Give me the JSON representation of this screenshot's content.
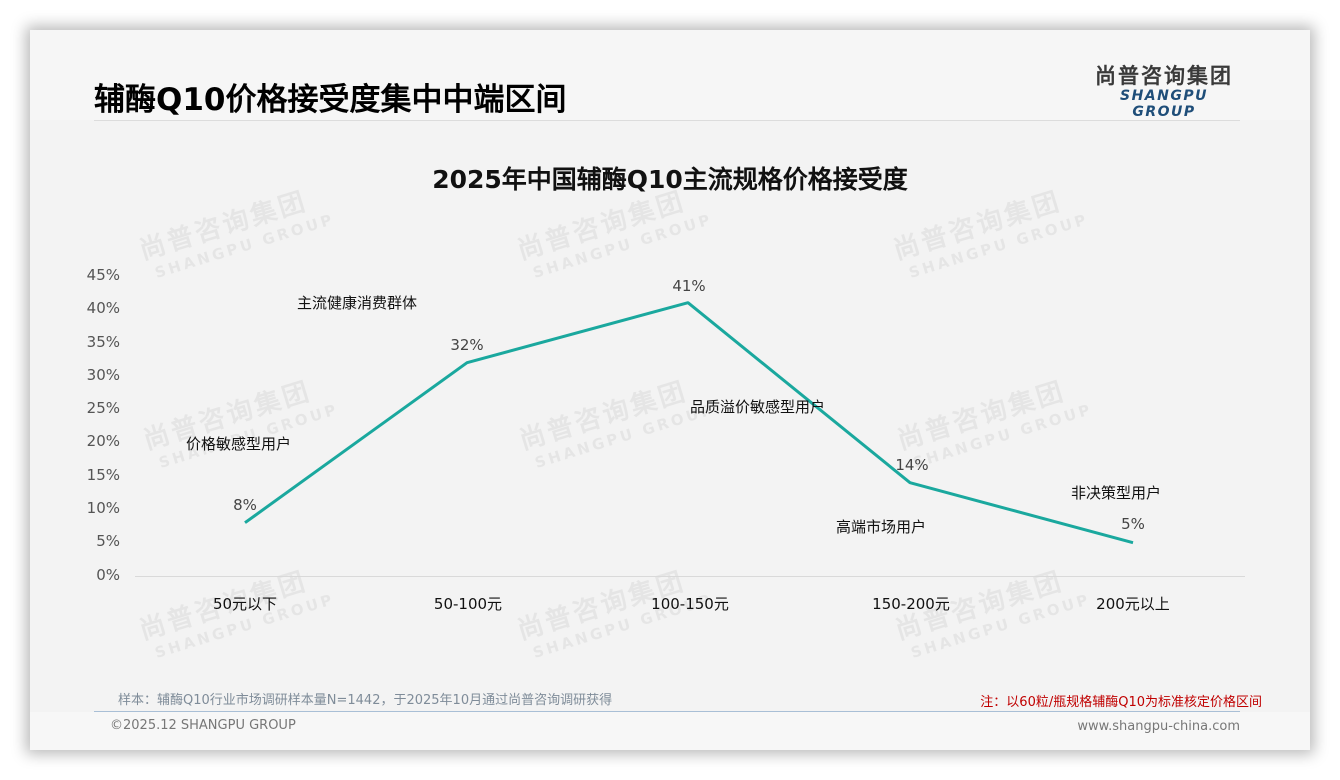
{
  "header": {
    "title": "辅酶Q10价格接受度集中中端区间",
    "logo_cn": "尚普咨询集团",
    "logo_en": "SHANGPU GROUP"
  },
  "watermark": {
    "cn": "尚普咨询集团",
    "en": "SHANGPU GROUP"
  },
  "chart_data": {
    "type": "line",
    "title": "2025年中国辅酶Q10主流规格价格接受度",
    "xlabel": "",
    "ylabel": "",
    "categories": [
      "50元以下",
      "50-100元",
      "100-150元",
      "150-200元",
      "200元以上"
    ],
    "values": [
      8,
      32,
      41,
      14,
      5
    ],
    "value_labels": [
      "8%",
      "32%",
      "41%",
      "14%",
      "5%"
    ],
    "ylim": [
      0,
      45
    ],
    "y_ticks": [
      "45%",
      "40%",
      "35%",
      "30%",
      "25%",
      "20%",
      "15%",
      "10%",
      "5%",
      "0%"
    ],
    "grid": false,
    "legend": "none",
    "line_color": "#1aa89e",
    "annotations": [
      {
        "text": "价格敏感型用户",
        "category": "50元以下"
      },
      {
        "text": "主流健康消费群体",
        "category": "50-100元"
      },
      {
        "text": "品质溢价敏感型用户",
        "category": "100-150元"
      },
      {
        "text": "高端市场用户",
        "category": "150-200元"
      },
      {
        "text": "非决策型用户",
        "category": "200元以上"
      }
    ]
  },
  "footer": {
    "source": "样本：辅酶Q10行业市场调研样本量N=1442，于2025年10月通过尚普咨询调研获得",
    "note": "注：以60粒/瓶规格辅酶Q10为标准核定价格区间",
    "copyright": "©2025.12 SHANGPU GROUP",
    "website": "www.shangpu-china.com"
  }
}
